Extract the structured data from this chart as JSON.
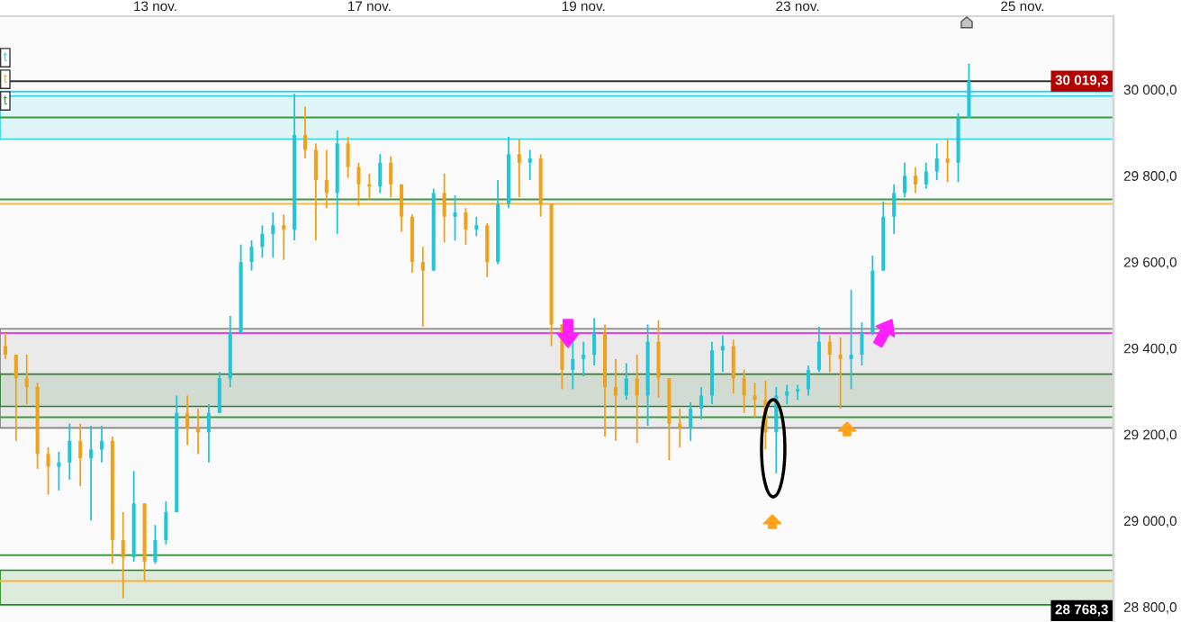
{
  "chart_data": {
    "type": "candlestick",
    "categories": [
      null,
      null,
      null,
      null,
      null,
      null,
      null,
      null,
      null,
      null,
      null,
      null,
      null,
      null,
      "13 nov.",
      null,
      null,
      null,
      null,
      null,
      null,
      null,
      null,
      null,
      null,
      null,
      null,
      null,
      null,
      null,
      null,
      null,
      null,
      null,
      "17 nov.",
      null,
      null,
      null,
      null,
      null,
      null,
      null,
      null,
      null,
      null,
      null,
      null,
      null,
      null,
      null,
      null,
      null,
      null,
      null,
      "19 nov.",
      null,
      null,
      null,
      null,
      null,
      null,
      null,
      null,
      null,
      null,
      null,
      null,
      null,
      null,
      null,
      null,
      null,
      null,
      null,
      "23 nov.",
      null,
      null,
      null,
      null,
      null,
      null,
      null,
      null,
      null,
      null,
      null,
      null,
      null,
      null,
      null,
      null,
      null,
      null,
      null,
      null,
      "25 nov.",
      null,
      null,
      null,
      null,
      null,
      null,
      null,
      null
    ],
    "ohlc": [
      [
        29405,
        29435,
        29375,
        29385
      ],
      [
        29385,
        29385,
        29185,
        29330
      ],
      [
        29330,
        29385,
        29270,
        29310
      ],
      [
        29310,
        29320,
        29120,
        29155
      ],
      [
        29155,
        29170,
        29060,
        29125
      ],
      [
        29125,
        29160,
        29070,
        29135
      ],
      [
        29135,
        29225,
        29095,
        29185
      ],
      [
        29185,
        29225,
        29080,
        29145
      ],
      [
        29145,
        29220,
        29000,
        29165
      ],
      [
        29165,
        29220,
        29135,
        29185
      ],
      [
        29185,
        29195,
        28900,
        28955
      ],
      [
        28955,
        29020,
        28820,
        28915
      ],
      [
        28915,
        29115,
        28905,
        29040
      ],
      [
        29040,
        29040,
        28860,
        28905
      ],
      [
        28905,
        28990,
        28900,
        28955
      ],
      [
        28955,
        29045,
        28945,
        29020
      ],
      [
        29020,
        29290,
        29020,
        29250
      ],
      [
        29250,
        29290,
        29175,
        29215
      ],
      [
        29215,
        29260,
        29155,
        29205
      ],
      [
        29205,
        29270,
        29135,
        29250
      ],
      [
        29250,
        29345,
        29250,
        29330
      ],
      [
        29330,
        29475,
        29310,
        29435
      ],
      [
        29435,
        29640,
        29435,
        29600
      ],
      [
        29600,
        29650,
        29580,
        29635
      ],
      [
        29635,
        29685,
        29610,
        29665
      ],
      [
        29665,
        29715,
        29610,
        29685
      ],
      [
        29685,
        29710,
        29605,
        29675
      ],
      [
        29675,
        29990,
        29650,
        29895
      ],
      [
        29895,
        29960,
        29840,
        29860
      ],
      [
        29860,
        29875,
        29650,
        29790
      ],
      [
        29790,
        29860,
        29725,
        29760
      ],
      [
        29760,
        29905,
        29665,
        29875
      ],
      [
        29875,
        29890,
        29795,
        29820
      ],
      [
        29820,
        29830,
        29730,
        29780
      ],
      [
        29780,
        29805,
        29745,
        29775
      ],
      [
        29775,
        29850,
        29760,
        29830
      ],
      [
        29830,
        29845,
        29750,
        29780
      ],
      [
        29780,
        29780,
        29670,
        29705
      ],
      [
        29705,
        29710,
        29575,
        29600
      ],
      [
        29600,
        29635,
        29450,
        29580
      ],
      [
        29580,
        29770,
        29580,
        29760
      ],
      [
        29760,
        29805,
        29645,
        29705
      ],
      [
        29705,
        29755,
        29650,
        29715
      ],
      [
        29715,
        29725,
        29640,
        29675
      ],
      [
        29675,
        29705,
        29660,
        29685
      ],
      [
        29685,
        29690,
        29565,
        29600
      ],
      [
        29600,
        29790,
        29595,
        29735
      ],
      [
        29735,
        29890,
        29725,
        29850
      ],
      [
        29850,
        29885,
        29750,
        29830
      ],
      [
        29830,
        29860,
        29790,
        29840
      ],
      [
        29840,
        29850,
        29705,
        29735
      ],
      [
        29735,
        29735,
        29405,
        29455
      ],
      [
        29455,
        29455,
        29305,
        29350
      ],
      [
        29350,
        29415,
        29305,
        29375
      ],
      [
        29375,
        29415,
        29335,
        29385
      ],
      [
        29385,
        29470,
        29360,
        29435
      ],
      [
        29435,
        29455,
        29195,
        29310
      ],
      [
        29310,
        29375,
        29185,
        29290
      ],
      [
        29290,
        29365,
        29280,
        29330
      ],
      [
        29330,
        29385,
        29180,
        29290
      ],
      [
        29290,
        29455,
        29220,
        29415
      ],
      [
        29415,
        29465,
        29285,
        29330
      ],
      [
        29330,
        29330,
        29140,
        29225
      ],
      [
        29225,
        29260,
        29170,
        29215
      ],
      [
        29215,
        29275,
        29185,
        29260
      ],
      [
        29260,
        29310,
        29235,
        29290
      ],
      [
        29290,
        29415,
        29270,
        29395
      ],
      [
        29395,
        29430,
        29345,
        29405
      ],
      [
        29405,
        29420,
        29295,
        29330
      ],
      [
        29330,
        29350,
        29250,
        29290
      ],
      [
        29290,
        29320,
        29240,
        29280
      ],
      [
        29280,
        29325,
        29165,
        29205
      ],
      [
        29205,
        29310,
        29110,
        29290
      ],
      [
        29290,
        29315,
        29270,
        29300
      ],
      [
        29300,
        29315,
        29280,
        29305
      ],
      [
        29305,
        29360,
        29290,
        29350
      ],
      [
        29350,
        29450,
        29345,
        29415
      ],
      [
        29415,
        29430,
        29345,
        29385
      ],
      [
        29385,
        29425,
        29260,
        29375
      ],
      [
        29375,
        29535,
        29305,
        29385
      ],
      [
        29385,
        29460,
        29360,
        29435
      ],
      [
        29435,
        29615,
        29430,
        29580
      ],
      [
        29580,
        29740,
        29580,
        29705
      ],
      [
        29705,
        29780,
        29665,
        29760
      ],
      [
        29760,
        29830,
        29750,
        29800
      ],
      [
        29800,
        29820,
        29760,
        29780
      ],
      [
        29780,
        29830,
        29770,
        29810
      ],
      [
        29810,
        29875,
        29790,
        29840
      ],
      [
        29840,
        29885,
        29785,
        29830
      ],
      [
        29830,
        29945,
        29785,
        29935
      ],
      [
        29935,
        30060,
        29935,
        30019.3
      ],
      null,
      null,
      null,
      null,
      null,
      null,
      null,
      null,
      null,
      null,
      null,
      null,
      null
    ],
    "colors": [
      "#eea21b",
      "#eea21b",
      "#eea21b",
      "#eea21b",
      "#eea21b",
      "#22c4d8",
      "#22c4d8",
      "#eea21b",
      "#22c4d8",
      "#22c4d8",
      "#eea21b",
      "#eea21b",
      "#22c4d8",
      "#eea21b",
      "#22c4d8",
      "#22c4d8",
      "#22c4d8",
      "#eea21b",
      "#eea21b",
      "#22c4d8",
      "#22c4d8",
      "#22c4d8",
      "#22c4d8",
      "#22c4d8",
      "#22c4d8",
      "#22c4d8",
      "#eea21b",
      "#22c4d8",
      "#eea21b",
      "#eea21b",
      "#eea21b",
      "#22c4d8",
      "#eea21b",
      "#eea21b",
      "#eea21b",
      "#22c4d8",
      "#eea21b",
      "#eea21b",
      "#eea21b",
      "#eea21b",
      "#22c4d8",
      "#eea21b",
      "#22c4d8",
      "#eea21b",
      "#22c4d8",
      "#eea21b",
      "#22c4d8",
      "#22c4d8",
      "#eea21b",
      "#22c4d8",
      "#eea21b",
      "#eea21b",
      "#eea21b",
      "#22c4d8",
      "#22c4d8",
      "#22c4d8",
      "#eea21b",
      "#eea21b",
      "#22c4d8",
      "#eea21b",
      "#22c4d8",
      "#eea21b",
      "#eea21b",
      "#eea21b",
      "#22c4d8",
      "#22c4d8",
      "#22c4d8",
      "#22c4d8",
      "#eea21b",
      "#eea21b",
      "#eea21b",
      "#eea21b",
      "#22c4d8",
      "#22c4d8",
      "#22c4d8",
      "#22c4d8",
      "#22c4d8",
      "#eea21b",
      "#eea21b",
      "#22c4d8",
      "#22c4d8",
      "#22c4d8",
      "#22c4d8",
      "#22c4d8",
      "#22c4d8",
      "#eea21b",
      "#22c4d8",
      "#22c4d8",
      "#eea21b",
      "#22c4d8",
      "#22c4d8",
      null,
      null,
      null,
      null,
      null,
      null,
      null,
      null,
      null,
      null,
      null,
      null,
      null
    ],
    "ylim": [
      28765,
      30170
    ],
    "yticks": [
      {
        "value": 28800,
        "label": "28 800,0"
      },
      {
        "value": 29000,
        "label": "29 000,0"
      },
      {
        "value": 29200,
        "label": "29 200,0"
      },
      {
        "value": 29400,
        "label": "29 400,0"
      },
      {
        "value": 29600,
        "label": "29 600,0"
      },
      {
        "value": 29800,
        "label": "29 800,0"
      },
      {
        "value": 30000,
        "label": "30 000,0"
      }
    ],
    "bands": [
      {
        "axis": "y",
        "from": 29885,
        "to": 29985,
        "color": "#2fd0e8"
      },
      {
        "axis": "y",
        "from": 29215,
        "to": 29445,
        "color": "#808080"
      },
      {
        "axis": "y",
        "from": 29265,
        "to": 29340,
        "color": "#2e7d32"
      },
      {
        "axis": "y",
        "from": 28805,
        "to": 28885,
        "color": "#1a8c1a"
      }
    ],
    "ref_lines": [
      {
        "axis": "y",
        "value": 29995,
        "label": "t",
        "color": "#33d3ee"
      },
      {
        "axis": "y",
        "value": 29735,
        "label": "t",
        "color": "#f7b040"
      },
      {
        "axis": "y",
        "value": 29935,
        "label": "t",
        "color": "#3c9a3c"
      },
      {
        "axis": "y",
        "value": 30019.3,
        "color": "#333333"
      },
      {
        "axis": "y",
        "value": 29745,
        "color": "#3c9a3c"
      },
      {
        "axis": "y",
        "value": 29435,
        "color": "#f03cf0"
      },
      {
        "axis": "y",
        "value": 29240,
        "color": "#3c9a3c"
      },
      {
        "axis": "y",
        "value": 28920,
        "color": "#3c9a3c"
      },
      {
        "axis": "y",
        "value": 28860,
        "color": "#f7b040"
      }
    ],
    "annotations": [
      {
        "text": "30 019,3",
        "y": 30019.3
      },
      "28 768,3"
    ]
  }
}
